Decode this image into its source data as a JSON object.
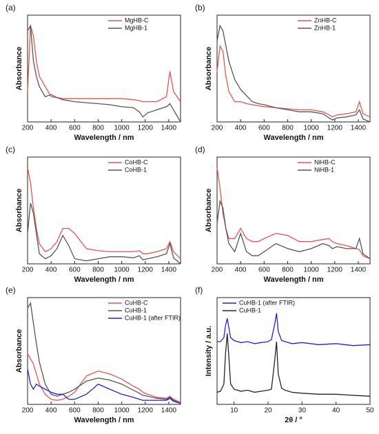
{
  "chart_data": [
    {
      "type": "line",
      "label": "(a)",
      "xlabel": "Wavelength / nm",
      "ylabel": "Absorbance",
      "legend": "upper right",
      "x": [
        200,
        225,
        250,
        275,
        300,
        350,
        400,
        450,
        500,
        550,
        600,
        700,
        800,
        900,
        1000,
        1100,
        1150,
        1180,
        1220,
        1300,
        1380,
        1410,
        1440,
        1500
      ],
      "xlim": [
        200,
        1500
      ],
      "xticks": [
        200,
        400,
        600,
        800,
        1000,
        1200,
        1400
      ],
      "ylim": [
        0,
        1
      ],
      "series": [
        {
          "name": "MgHB-C",
          "color": "#e8534d",
          "values": [
            0.3,
            0.95,
            0.85,
            0.6,
            0.45,
            0.35,
            0.25,
            0.24,
            0.23,
            0.23,
            0.23,
            0.23,
            0.23,
            0.23,
            0.23,
            0.22,
            0.21,
            0.2,
            0.2,
            0.2,
            0.25,
            0.5,
            0.3,
            0.2
          ]
        },
        {
          "name": "MgHB-1",
          "color": "#555555",
          "values": [
            0.9,
            0.95,
            0.6,
            0.45,
            0.35,
            0.25,
            0.27,
            0.24,
            0.22,
            0.21,
            0.2,
            0.19,
            0.18,
            0.17,
            0.15,
            0.14,
            0.1,
            0.05,
            0.09,
            0.12,
            0.15,
            0.18,
            0.12,
            0.0
          ]
        }
      ]
    },
    {
      "type": "line",
      "label": "(b)",
      "xlabel": "Wavelength / nm",
      "ylabel": "Absorbance",
      "legend": "upper right",
      "x": [
        200,
        225,
        250,
        275,
        300,
        350,
        400,
        450,
        500,
        550,
        600,
        700,
        800,
        900,
        1000,
        1100,
        1150,
        1180,
        1220,
        1300,
        1380,
        1410,
        1440,
        1500
      ],
      "xlim": [
        200,
        1500
      ],
      "xticks": [
        200,
        400,
        600,
        800,
        1000,
        1200,
        1400
      ],
      "ylim": [
        0,
        1
      ],
      "series": [
        {
          "name": "ZnHB-C",
          "color": "#e8534d",
          "values": [
            0.5,
            0.75,
            0.7,
            0.45,
            0.3,
            0.2,
            0.2,
            0.18,
            0.17,
            0.16,
            0.15,
            0.14,
            0.13,
            0.12,
            0.12,
            0.1,
            0.07,
            0.05,
            0.07,
            0.08,
            0.1,
            0.2,
            0.08,
            0.05
          ]
        },
        {
          "name": "ZnHB-1",
          "color": "#555555",
          "values": [
            0.8,
            0.95,
            0.9,
            0.75,
            0.6,
            0.42,
            0.32,
            0.26,
            0.2,
            0.18,
            0.17,
            0.14,
            0.12,
            0.1,
            0.1,
            0.08,
            0.04,
            0.02,
            0.04,
            0.05,
            0.07,
            0.12,
            0.03,
            0.0
          ]
        }
      ]
    },
    {
      "type": "line",
      "label": "(c)",
      "xlabel": "Wavelength / nm",
      "ylabel": "Absorbance",
      "legend": "upper right",
      "x": [
        200,
        225,
        250,
        275,
        300,
        350,
        400,
        450,
        500,
        550,
        600,
        700,
        800,
        900,
        1000,
        1100,
        1150,
        1180,
        1220,
        1300,
        1380,
        1410,
        1440,
        1500
      ],
      "xlim": [
        200,
        1500
      ],
      "xticks": [
        200,
        400,
        600,
        800,
        1000,
        1200,
        1400
      ],
      "ylim": [
        0,
        1
      ],
      "series": [
        {
          "name": "CoHB-C",
          "color": "#e8534d",
          "values": [
            0.95,
            0.8,
            0.55,
            0.35,
            0.2,
            0.12,
            0.15,
            0.22,
            0.35,
            0.35,
            0.3,
            0.15,
            0.13,
            0.12,
            0.12,
            0.12,
            0.13,
            0.1,
            0.1,
            0.12,
            0.15,
            0.22,
            0.12,
            0.05
          ]
        },
        {
          "name": "CoHB-1",
          "color": "#555555",
          "values": [
            0.3,
            0.6,
            0.5,
            0.3,
            0.1,
            0.05,
            0.08,
            0.15,
            0.28,
            0.18,
            0.05,
            0.03,
            0.05,
            0.07,
            0.07,
            0.06,
            0.08,
            0.04,
            0.05,
            0.07,
            0.1,
            0.2,
            0.06,
            0.0
          ]
        }
      ]
    },
    {
      "type": "line",
      "label": "(d)",
      "xlabel": "Wavelength / nm",
      "ylabel": "Absorbance",
      "legend": "upper right",
      "x": [
        200,
        225,
        250,
        275,
        300,
        350,
        400,
        450,
        500,
        550,
        600,
        700,
        800,
        900,
        1000,
        1100,
        1150,
        1180,
        1220,
        1300,
        1380,
        1410,
        1440,
        1500
      ],
      "xlim": [
        200,
        1500
      ],
      "xticks": [
        200,
        400,
        600,
        800,
        1000,
        1200,
        1400
      ],
      "ylim": [
        0,
        1
      ],
      "series": [
        {
          "name": "NiHB-C",
          "color": "#e8534d",
          "values": [
            0.95,
            0.75,
            0.5,
            0.35,
            0.25,
            0.25,
            0.35,
            0.25,
            0.22,
            0.22,
            0.25,
            0.3,
            0.28,
            0.22,
            0.22,
            0.24,
            0.25,
            0.22,
            0.2,
            0.18,
            0.15,
            0.14,
            0.08,
            0.05
          ]
        },
        {
          "name": "NiHB-1",
          "color": "#555555",
          "values": [
            0.4,
            0.62,
            0.55,
            0.35,
            0.2,
            0.12,
            0.3,
            0.12,
            0.08,
            0.08,
            0.12,
            0.2,
            0.15,
            0.12,
            0.15,
            0.2,
            0.18,
            0.15,
            0.17,
            0.15,
            0.15,
            0.25,
            0.1,
            0.05
          ]
        }
      ]
    },
    {
      "type": "line",
      "label": "(e)",
      "xlabel": "Wavelength / nm",
      "ylabel": "Absorbance",
      "legend": "upper right",
      "x": [
        200,
        225,
        250,
        275,
        300,
        350,
        400,
        450,
        500,
        550,
        600,
        700,
        800,
        900,
        1000,
        1100,
        1150,
        1180,
        1220,
        1300,
        1380,
        1410,
        1440,
        1500
      ],
      "xlim": [
        200,
        1500
      ],
      "xticks": [
        200,
        400,
        600,
        800,
        1000,
        1200,
        1400
      ],
      "ylim": [
        0,
        1
      ],
      "series": [
        {
          "name": "CuHB-C",
          "color": "#e8534d",
          "values": [
            0.5,
            0.45,
            0.4,
            0.3,
            0.2,
            0.1,
            0.05,
            0.04,
            0.05,
            0.08,
            0.12,
            0.28,
            0.33,
            0.3,
            0.25,
            0.18,
            0.15,
            0.12,
            0.1,
            0.07,
            0.06,
            0.08,
            0.05,
            0.02
          ]
        },
        {
          "name": "CuHB-1",
          "color": "#555555",
          "values": [
            0.95,
            1.0,
            0.8,
            0.6,
            0.42,
            0.2,
            0.1,
            0.08,
            0.1,
            0.12,
            0.15,
            0.23,
            0.26,
            0.24,
            0.2,
            0.14,
            0.11,
            0.09,
            0.08,
            0.06,
            0.05,
            0.07,
            0.04,
            0.01
          ]
        },
        {
          "name": "CuHB-1 (after FTIR)",
          "color": "#1f1fdf",
          "values": [
            0.35,
            0.2,
            0.15,
            0.2,
            0.18,
            0.15,
            0.12,
            0.1,
            0.1,
            0.05,
            0.05,
            0.1,
            0.2,
            0.15,
            0.1,
            0.07,
            0.05,
            0.04,
            0.04,
            0.04,
            0.04,
            0.06,
            0.03,
            0.01
          ]
        }
      ]
    },
    {
      "type": "line",
      "label": "(f)",
      "xlabel": "2θ / °",
      "ylabel": "Intensity / a.u.",
      "legend": "upper left",
      "x": [
        5,
        6,
        7,
        7.5,
        8,
        8.5,
        9,
        10,
        12,
        14,
        16,
        18,
        20,
        21,
        22,
        22.5,
        23,
        24,
        25,
        27,
        30,
        35,
        40,
        45,
        50
      ],
      "xlim": [
        5,
        50
      ],
      "xticks": [
        10,
        20,
        30,
        40,
        50
      ],
      "ylim": [
        0,
        1
      ],
      "series": [
        {
          "name": "CuHB-1 (after FTIR)",
          "color": "#1f1fdf",
          "values": [
            0.62,
            0.62,
            0.66,
            0.78,
            0.85,
            0.75,
            0.66,
            0.63,
            0.61,
            0.62,
            0.6,
            0.61,
            0.62,
            0.64,
            0.8,
            0.9,
            0.72,
            0.63,
            0.62,
            0.6,
            0.61,
            0.59,
            0.6,
            0.58,
            0.59
          ]
        },
        {
          "name": "CuHB-1",
          "color": "#222222",
          "values": [
            0.12,
            0.13,
            0.2,
            0.5,
            0.7,
            0.45,
            0.2,
            0.15,
            0.13,
            0.14,
            0.12,
            0.13,
            0.14,
            0.15,
            0.45,
            0.62,
            0.3,
            0.16,
            0.14,
            0.12,
            0.11,
            0.1,
            0.1,
            0.09,
            0.08
          ]
        }
      ]
    }
  ]
}
